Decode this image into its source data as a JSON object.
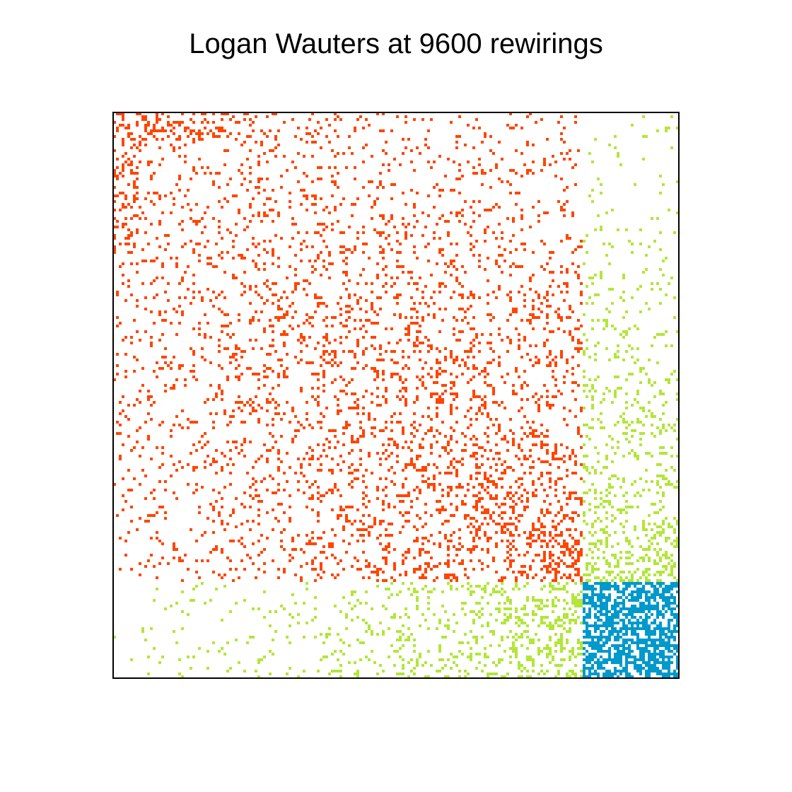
{
  "chart_data": {
    "type": "heatmap",
    "title": "Logan Wauters at 9600 rewirings",
    "xlabel": "",
    "ylabel": "",
    "grid": false,
    "legend": "none",
    "matrix_size": 200,
    "blocks": [
      {
        "color": "#FF4500",
        "row_range": [
          0,
          166
        ],
        "col_range": [
          0,
          166
        ],
        "density": "sparse, increasing toward the diagonal"
      },
      {
        "color": "#B2E639",
        "row_range": [
          166,
          200
        ],
        "col_range": [
          0,
          166
        ],
        "density": "sparse, increasing toward the right"
      },
      {
        "color": "#B2E639",
        "row_range": [
          0,
          166
        ],
        "col_range": [
          166,
          200
        ],
        "density": "sparse, increasing downward"
      },
      {
        "color": "#0099CC",
        "row_range": [
          166,
          200
        ],
        "col_range": [
          166,
          200
        ],
        "density": "dense"
      }
    ],
    "colors": {
      "block_1": "#FF4500",
      "off_diagonal": "#B2E639",
      "block_2": "#0099CC"
    }
  }
}
